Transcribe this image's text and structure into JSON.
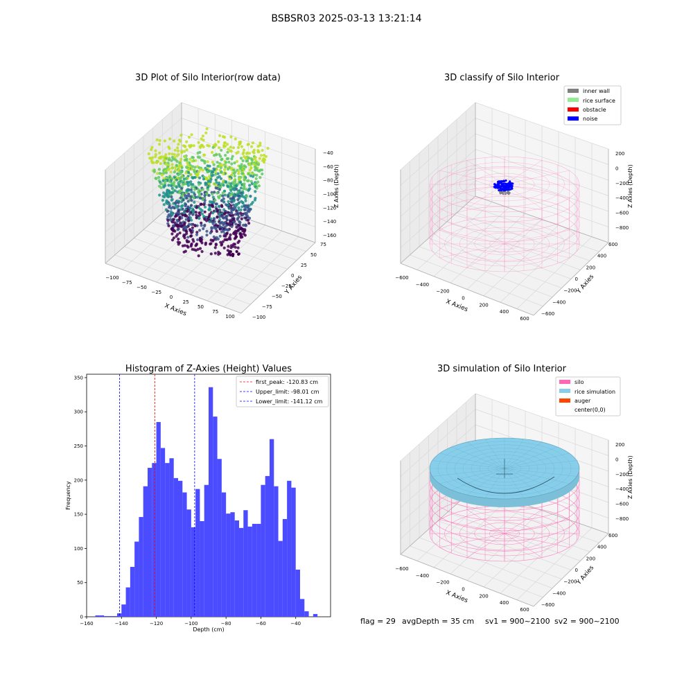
{
  "figure_title": "BSBSR03 2025-03-13 13:21:14",
  "footer": {
    "flag": "flag = 29",
    "avg_depth": "avgDepth = 35 cm",
    "sv1": "sv1 = 900~2100",
    "sv2": "sv2 = 900~2100"
  },
  "colors": {
    "hist_bar": "#4b4bff",
    "peak_line": "#ff0000",
    "limit_line": "#0000ff",
    "silo": "#ff69b4",
    "rice_simulation": "#87ceeb",
    "auger": "#ff4500",
    "inner_wall": "#808080",
    "rice_surface": "#90ee90",
    "obstacle": "#ff0000",
    "noise": "#0000ff"
  },
  "chart_data": [
    {
      "type": "scatter",
      "projection": "3d",
      "title": "3D Plot of Silo Interior(row data)",
      "xlabel": "X Axies",
      "ylabel": "Y Axies",
      "zlabel": "Z Axies (Depth)",
      "xticks": [
        "−100",
        "−75",
        "−50",
        "−25",
        "0",
        "25",
        "50",
        "75",
        "100"
      ],
      "yticks": [
        "−100",
        "−75",
        "−50",
        "−25",
        "0",
        "25",
        "50",
        "75"
      ],
      "zticks": [
        "−40",
        "−60",
        "−80",
        "−100",
        "−120",
        "−140",
        "−160"
      ],
      "colormap": "viridis"
    },
    {
      "type": "scatter",
      "projection": "3d",
      "title": "3D classify of Silo Interior",
      "xlabel": "X Axies",
      "ylabel": "Y Axies",
      "zlabel": "Z Axies (Depth)",
      "xticks": [
        "−600",
        "−400",
        "−200",
        "0",
        "200",
        "400",
        "600"
      ],
      "yticks": [
        "−600",
        "−400",
        "−200",
        "0",
        "200",
        "400",
        "600"
      ],
      "zticks": [
        "200",
        "0",
        "−200",
        "−400",
        "−600",
        "−800"
      ],
      "legend": [
        "inner wall",
        "rice surface",
        "obstacle",
        "noise"
      ],
      "legend_position": "top-right"
    },
    {
      "type": "bar",
      "title": "Histogram of Z-Axies (Height) Values",
      "xlabel": "Depth (cm)",
      "ylabel": "Frequency",
      "xlim": [
        -160,
        -20
      ],
      "ylim": [
        0,
        355
      ],
      "xticks": [
        -160,
        -140,
        -120,
        -100,
        -80,
        -60,
        -40
      ],
      "yticks": [
        0,
        50,
        100,
        150,
        200,
        250,
        300,
        350
      ],
      "bin_width": 2.5,
      "bins": [
        [
          -155,
          2
        ],
        [
          -152.5,
          2
        ],
        [
          -150,
          1
        ],
        [
          -147.5,
          1
        ],
        [
          -145,
          1
        ],
        [
          -142.5,
          5
        ],
        [
          -140,
          18
        ],
        [
          -137.5,
          43
        ],
        [
          -135,
          73
        ],
        [
          -132.5,
          110
        ],
        [
          -130,
          146
        ],
        [
          -127.5,
          191
        ],
        [
          -125,
          218
        ],
        [
          -122.5,
          225
        ],
        [
          -120,
          285
        ],
        [
          -117.5,
          247
        ],
        [
          -115,
          225
        ],
        [
          -112.5,
          232
        ],
        [
          -110,
          203
        ],
        [
          -107.5,
          199
        ],
        [
          -105,
          182
        ],
        [
          -102.5,
          157
        ],
        [
          -100,
          131
        ],
        [
          -97.5,
          187
        ],
        [
          -95,
          140
        ],
        [
          -92.5,
          193
        ],
        [
          -90,
          336
        ],
        [
          -87.5,
          293
        ],
        [
          -85,
          231
        ],
        [
          -82.5,
          182
        ],
        [
          -80,
          151
        ],
        [
          -77.5,
          153
        ],
        [
          -75,
          141
        ],
        [
          -72.5,
          130
        ],
        [
          -70,
          156
        ],
        [
          -67.5,
          132
        ],
        [
          -65,
          136
        ],
        [
          -62.5,
          136
        ],
        [
          -60,
          193
        ],
        [
          -57.5,
          206
        ],
        [
          -55,
          260
        ],
        [
          -52.5,
          191
        ],
        [
          -50,
          111
        ],
        [
          -47.5,
          143
        ],
        [
          -45,
          199
        ],
        [
          -42.5,
          189
        ],
        [
          -40,
          69
        ],
        [
          -37.5,
          26
        ],
        [
          -35,
          8
        ],
        [
          -32.5,
          0
        ],
        [
          -30,
          4
        ]
      ],
      "lines": [
        {
          "label": "first_peak: -120.83 cm",
          "x": -120.83,
          "color": "#ff0000"
        },
        {
          "label": "Upper_limit: -98.01 cm",
          "x": -98.01,
          "color": "#0000ff"
        },
        {
          "label": "Lower_limit: -141.12 cm",
          "x": -141.12,
          "color": "#0000ff"
        }
      ],
      "legend_position": "top-right"
    },
    {
      "type": "scatter",
      "projection": "3d",
      "title": "3D simulation of Silo Interior",
      "xlabel": "X Axies",
      "ylabel": "Y Axies",
      "zlabel": "Z Axies (Depth)",
      "xticks": [
        "−600",
        "−400",
        "−200",
        "0",
        "200",
        "400",
        "600"
      ],
      "yticks": [
        "−600",
        "−400",
        "−200",
        "0",
        "200",
        "400",
        "600"
      ],
      "zticks": [
        "200",
        "0",
        "−200",
        "−400",
        "−600",
        "−800"
      ],
      "legend": [
        "silo",
        "rice simulation",
        "auger",
        "center(0,0)"
      ],
      "legend_position": "top-right"
    }
  ]
}
